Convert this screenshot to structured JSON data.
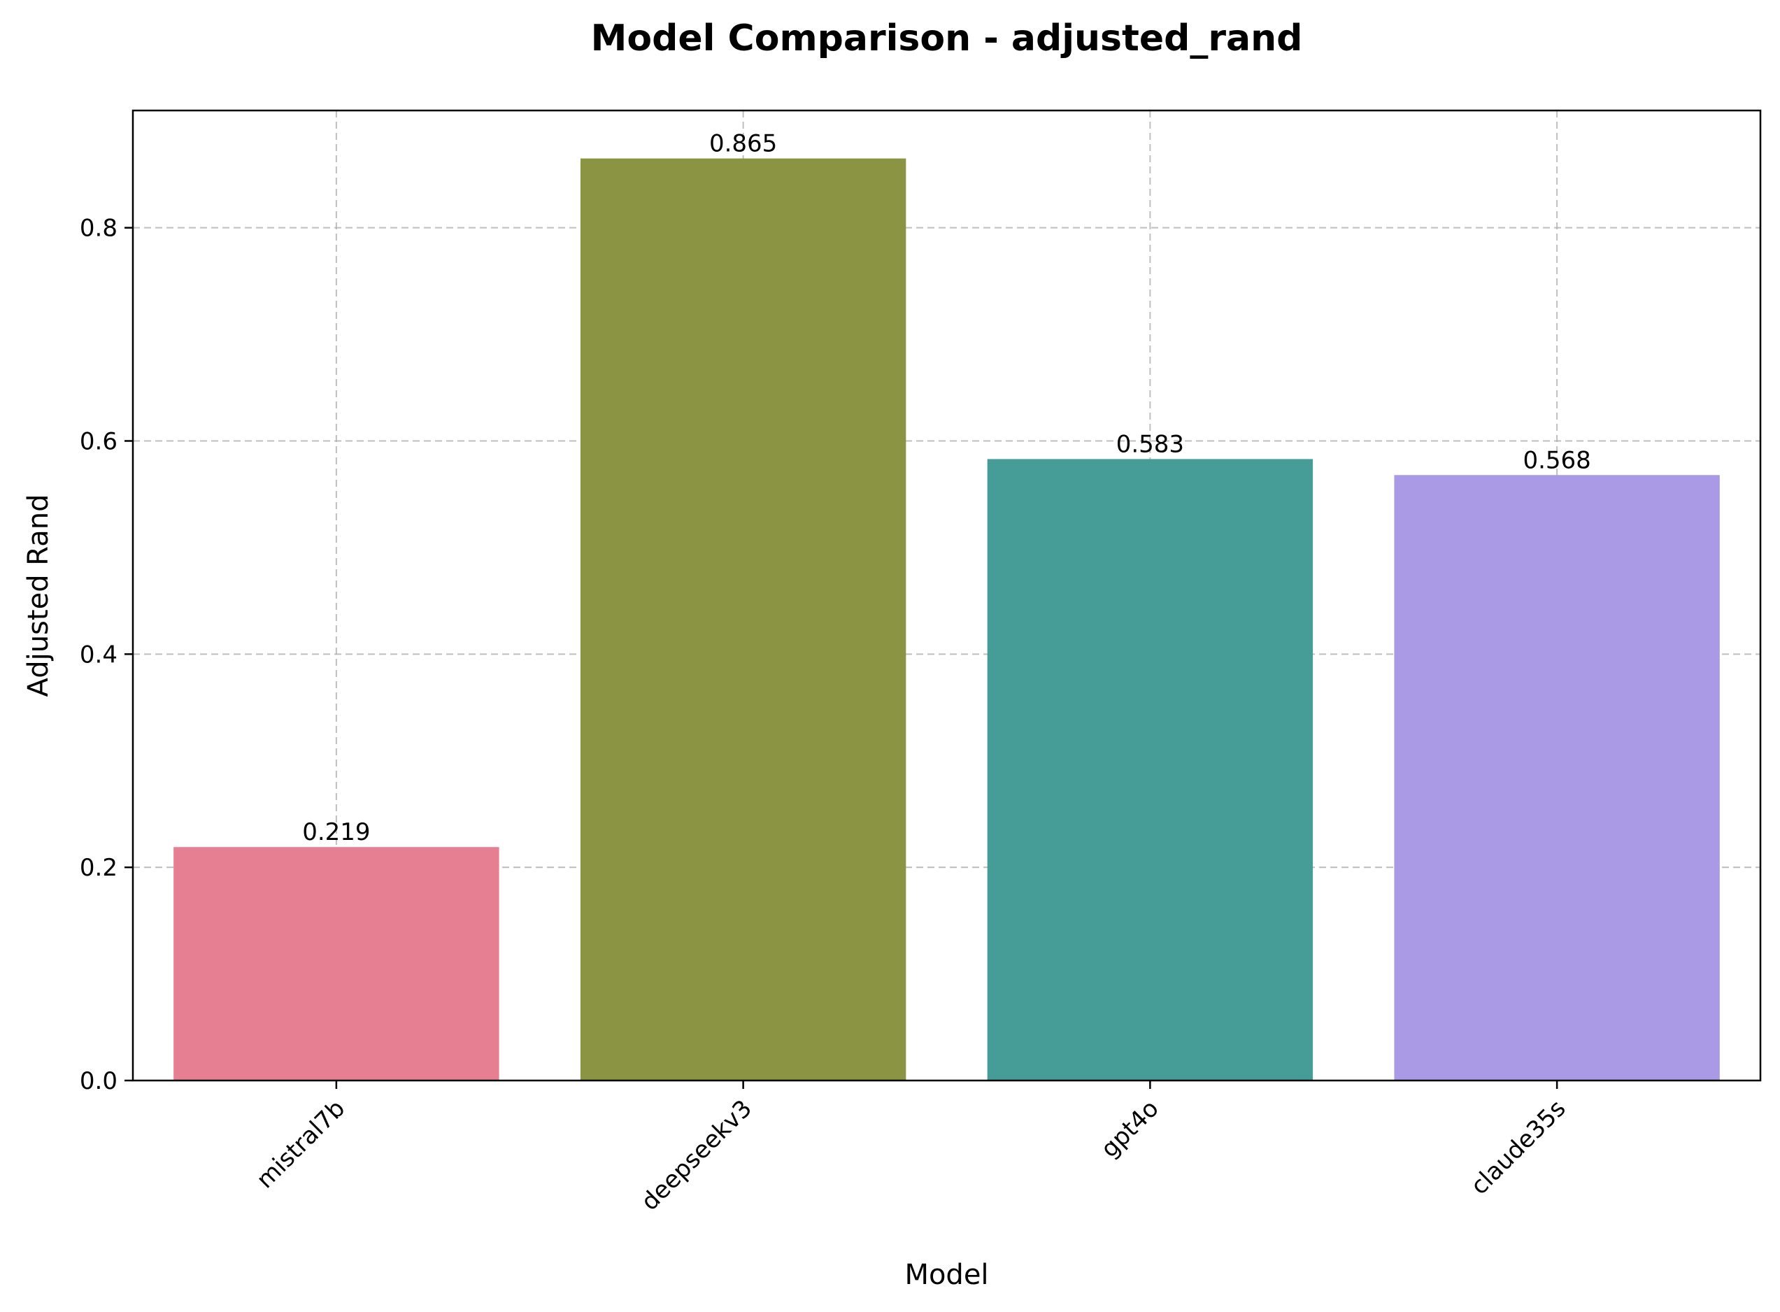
{
  "chart_data": {
    "type": "bar",
    "title": "Model Comparison - adjusted_rand",
    "xlabel": "Model",
    "ylabel": "Adjusted Rand",
    "categories": [
      "mistral7b",
      "deepseekv3",
      "gpt4o",
      "claude35s"
    ],
    "values": [
      0.219,
      0.865,
      0.583,
      0.568
    ],
    "value_labels": [
      "0.219",
      "0.865",
      "0.583",
      "0.568"
    ],
    "colors": [
      "#e67f91",
      "#8a9442",
      "#469d97",
      "#aa9ae5"
    ],
    "ylim": [
      0,
      0.91
    ],
    "yticks": [
      0.0,
      0.2,
      0.4,
      0.6,
      0.8
    ],
    "ytick_labels": [
      "0.0",
      "0.2",
      "0.4",
      "0.6",
      "0.8"
    ],
    "grid": true,
    "legend": "none",
    "xtick_rotation": 45
  }
}
